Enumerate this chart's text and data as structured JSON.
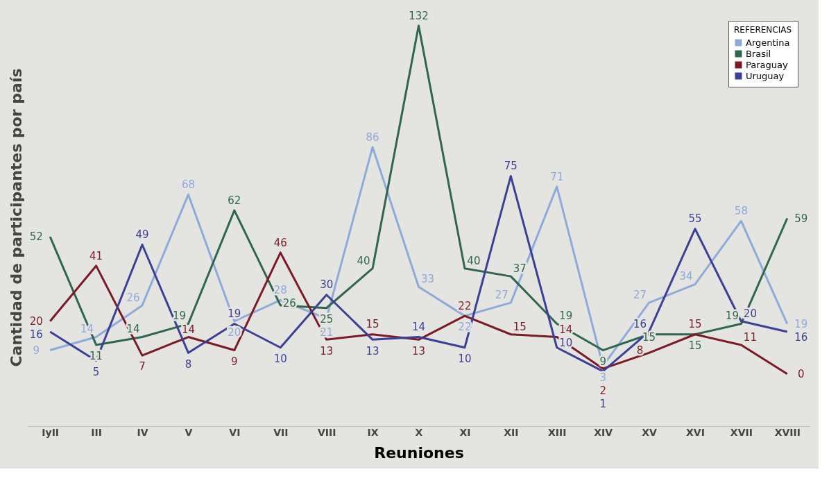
{
  "chart_data": {
    "type": "line",
    "xlabel": "Reuniones",
    "ylabel": "Cantidad de participantes por país",
    "legend_title": "REFERENCIAS",
    "legend": "top right",
    "grid": false,
    "marker": "none",
    "line_style": "solid",
    "data_labels": true,
    "categories": [
      "IyII",
      "III",
      "IV",
      "V",
      "VI",
      "VII",
      "VIII",
      "IX",
      "X",
      "XI",
      "XII",
      "XIII",
      "XIV",
      "XV",
      "XVI",
      "XVII",
      "XVIII"
    ],
    "series": [
      {
        "name": "Argentina",
        "color": "#8eaadb",
        "values": [
          9,
          14,
          26,
          68,
          20,
          28,
          21,
          86,
          33,
          22,
          27,
          71,
          3,
          27,
          34,
          58,
          19
        ]
      },
      {
        "name": "Brasil",
        "color": "#2f6650",
        "values": [
          52,
          11,
          14,
          19,
          62,
          26,
          25,
          40,
          132,
          40,
          37,
          19,
          9,
          15,
          15,
          19,
          59
        ]
      },
      {
        "name": "Paraguay",
        "color": "#7b1a26",
        "values": [
          20,
          41,
          7,
          14,
          9,
          46,
          13,
          15,
          13,
          22,
          15,
          14,
          2,
          8,
          15,
          11,
          0
        ]
      },
      {
        "name": "Uruguay",
        "color": "#3b3f96",
        "values": [
          16,
          5,
          49,
          8,
          19,
          10,
          30,
          13,
          14,
          10,
          75,
          10,
          1,
          16,
          55,
          20,
          16
        ]
      }
    ]
  }
}
